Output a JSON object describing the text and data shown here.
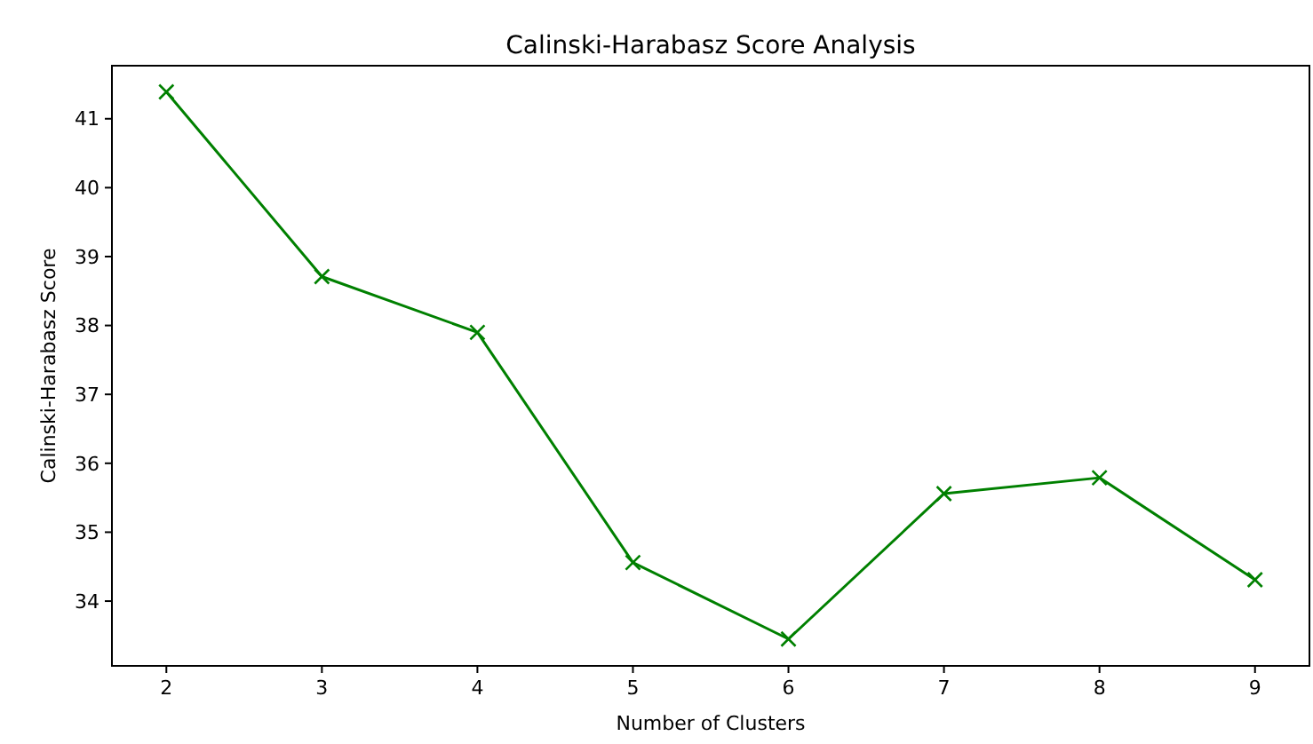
{
  "chart_data": {
    "type": "line",
    "title": "Calinski-Harabasz Score Analysis",
    "xlabel": "Number of Clusters",
    "ylabel": "Calinski-Harabasz Score",
    "x": [
      2,
      3,
      4,
      5,
      6,
      7,
      8,
      9
    ],
    "series": [
      {
        "color": "#008000",
        "values": [
          41.39,
          38.71,
          37.9,
          34.56,
          33.45,
          35.56,
          35.79,
          34.31
        ]
      }
    ],
    "xlim": [
      1.65,
      9.35
    ],
    "xticks": [
      2,
      3,
      4,
      5,
      6,
      7,
      8,
      9
    ],
    "ylim": [
      33.06,
      41.77
    ],
    "yticks": [
      34,
      35,
      36,
      37,
      38,
      39,
      40,
      41
    ],
    "marker": "cross",
    "line_style": "solid",
    "grid": false
  }
}
